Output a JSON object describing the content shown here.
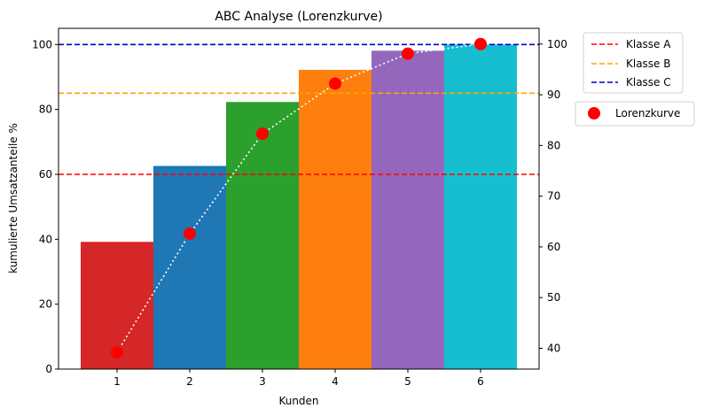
{
  "chart_data": {
    "type": "bar",
    "title": "ABC Analyse (Lorenzkurve)",
    "xlabel": "Kunden",
    "ylabel": "kumulierte Umsatzanteile %",
    "categories": [
      "1",
      "2",
      "3",
      "4",
      "5",
      "6"
    ],
    "bars": {
      "values": [
        39.2,
        62.6,
        82.3,
        92.2,
        98.1,
        100
      ],
      "colors": [
        "#d62728",
        "#1f77b4",
        "#2ca02c",
        "#ff7f0e",
        "#9467bd",
        "#17becf"
      ]
    },
    "y_left": {
      "lim": [
        0,
        105
      ],
      "ticks": [
        0,
        20,
        40,
        60,
        80,
        100
      ],
      "tick_labels": [
        "0",
        "20",
        "40",
        "60",
        "80",
        "100"
      ]
    },
    "y_right": {
      "lim": [
        35.9,
        103.1
      ],
      "ticks": [
        40,
        50,
        60,
        70,
        80,
        90,
        100
      ],
      "tick_labels": [
        "40",
        "50",
        "60",
        "70",
        "80",
        "90",
        "100"
      ]
    },
    "reference_lines": [
      {
        "name": "Klasse A",
        "y": 60,
        "axis": "left",
        "color": "#ff0000",
        "style": "dashed"
      },
      {
        "name": "Klasse B",
        "y": 85,
        "axis": "left",
        "color": "#ffa500",
        "style": "dashed"
      },
      {
        "name": "Klasse C",
        "y": 100,
        "axis": "left",
        "color": "#0000cd",
        "style": "dashed"
      }
    ],
    "lorenz": {
      "name": "Lorenzkurve",
      "axis": "right",
      "values": [
        39.2,
        62.6,
        82.3,
        92.2,
        98.1,
        100
      ],
      "marker_color": "#ff0000",
      "line_color": "#ffffff",
      "line_style": "dotted"
    },
    "legend_placement": "outside-right",
    "grid": false
  }
}
